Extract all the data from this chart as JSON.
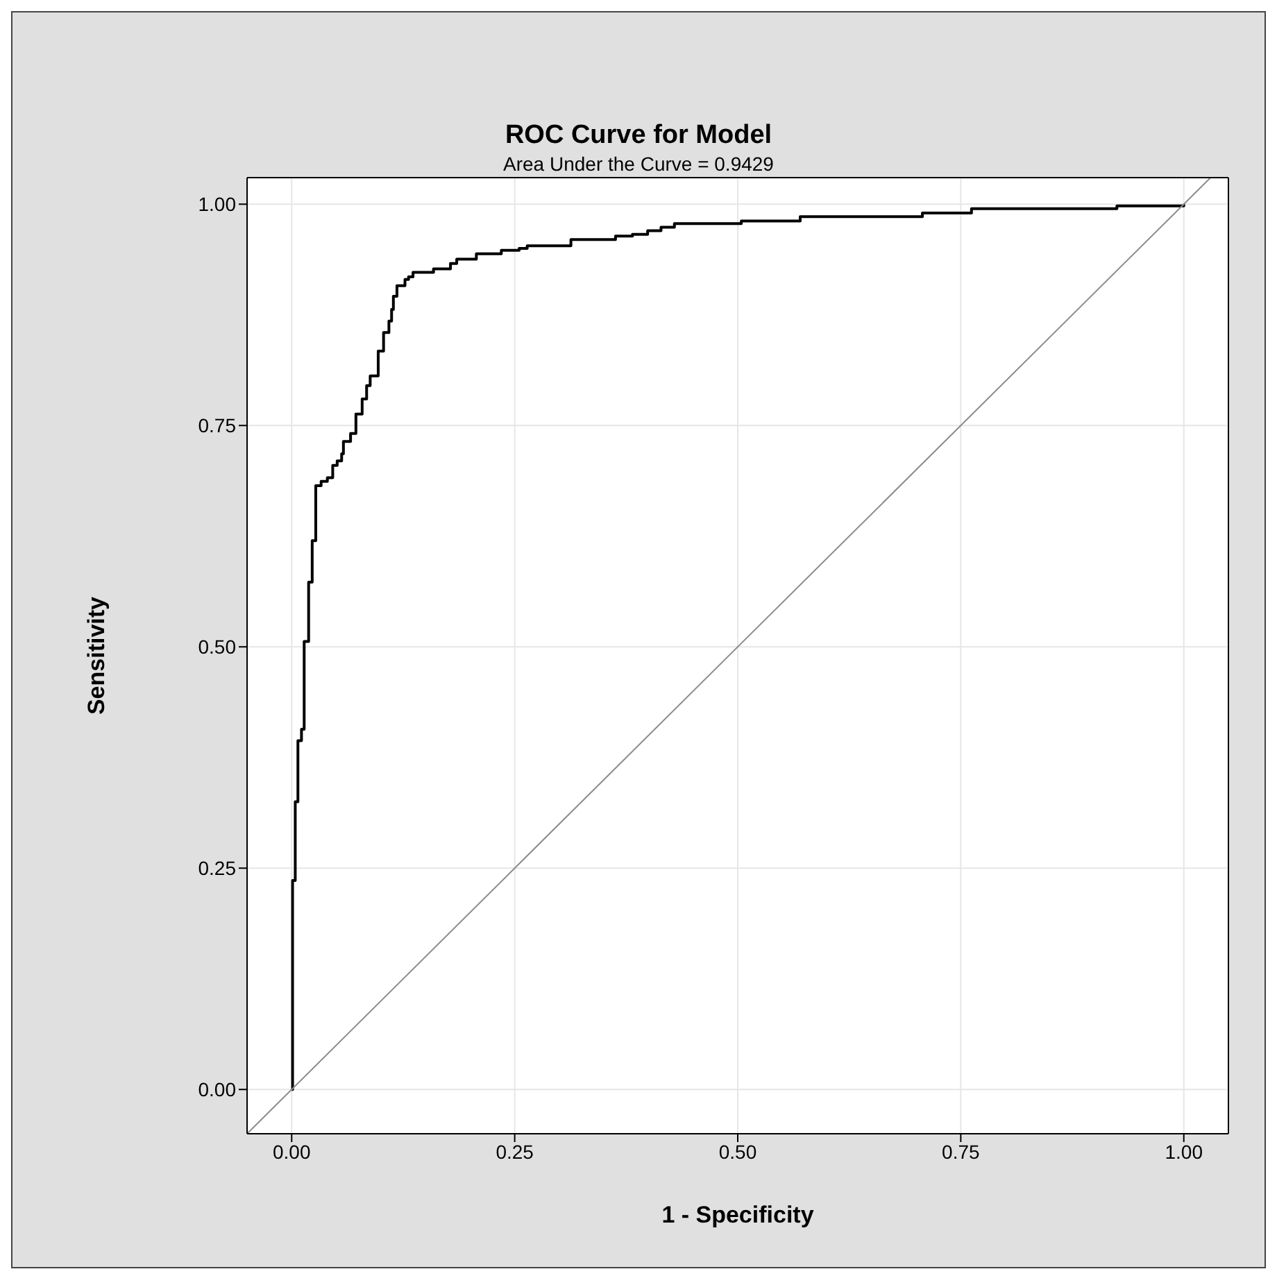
{
  "chart_data": {
    "type": "line",
    "title": "ROC Curve for Model",
    "subtitle": "Area Under the Curve = 0.9429",
    "xlabel": "1 - Specificity",
    "ylabel": "Sensitivity",
    "xlim": [
      -0.05,
      1.05
    ],
    "ylim": [
      -0.05,
      1.03
    ],
    "xticks": [
      {
        "value": 0,
        "label": "0.00"
      },
      {
        "value": 0.25,
        "label": "0.25"
      },
      {
        "value": 0.5,
        "label": "0.50"
      },
      {
        "value": 0.75,
        "label": "0.75"
      },
      {
        "value": 1,
        "label": "1.00"
      }
    ],
    "yticks": [
      {
        "value": 0,
        "label": "0.00"
      },
      {
        "value": 0.25,
        "label": "0.25"
      },
      {
        "value": 0.5,
        "label": "0.50"
      },
      {
        "value": 0.75,
        "label": "0.75"
      },
      {
        "value": 1,
        "label": "1.00"
      }
    ],
    "grid": true,
    "marker": "none",
    "series": [
      {
        "type": "step",
        "color": "#000000",
        "x": [
          0,
          0.001,
          0.004,
          0.007,
          0.011,
          0.014,
          0.019,
          0.023,
          0.027,
          0.033,
          0.04,
          0.046,
          0.051,
          0.056,
          0.058,
          0.066,
          0.072,
          0.079,
          0.084,
          0.088,
          0.097,
          0.103,
          0.109,
          0.112,
          0.114,
          0.118,
          0.127,
          0.131,
          0.136,
          0.159,
          0.178,
          0.185,
          0.207,
          0.235,
          0.255,
          0.264,
          0.313,
          0.363,
          0.382,
          0.399,
          0.414,
          0.429,
          0.504,
          0.57,
          0.707,
          0.762,
          0.925,
          1.0
        ],
        "values": [
          0,
          0.236,
          0.325,
          0.394,
          0.407,
          0.506,
          0.573,
          0.62,
          0.682,
          0.687,
          0.691,
          0.705,
          0.71,
          0.718,
          0.732,
          0.741,
          0.763,
          0.78,
          0.795,
          0.806,
          0.834,
          0.855,
          0.868,
          0.881,
          0.896,
          0.908,
          0.915,
          0.918,
          0.923,
          0.927,
          0.933,
          0.938,
          0.944,
          0.948,
          0.95,
          0.953,
          0.96,
          0.964,
          0.966,
          0.97,
          0.974,
          0.978,
          0.981,
          0.986,
          0.99,
          0.995,
          0.998,
          1.0
        ]
      },
      {
        "type": "line",
        "color": "#8c8c8c",
        "x": [
          -0.05,
          1.03
        ],
        "values": [
          -0.05,
          1.03
        ]
      }
    ]
  }
}
